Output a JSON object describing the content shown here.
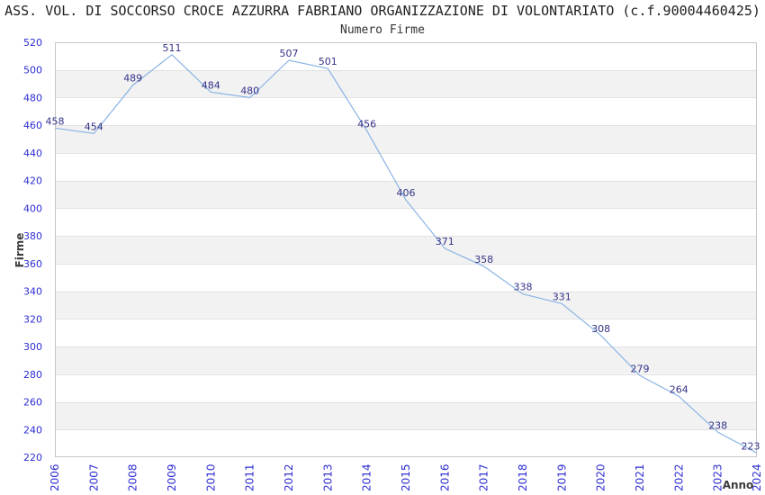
{
  "chart_data": {
    "type": "line",
    "title": "ASS. VOL. DI SOCCORSO CROCE AZZURRA FABRIANO ORGANIZZAZIONE DI VOLONTARIATO (c.f.90004460425)",
    "subtitle": "Numero Firme",
    "xlabel": "Anno",
    "ylabel": "Firme",
    "categories": [
      "2006",
      "2007",
      "2008",
      "2009",
      "2010",
      "2011",
      "2012",
      "2013",
      "2014",
      "2015",
      "2016",
      "2017",
      "2018",
      "2019",
      "2020",
      "2021",
      "2022",
      "2023",
      "2024"
    ],
    "values": [
      458,
      454,
      489,
      511,
      484,
      480,
      507,
      501,
      456,
      406,
      371,
      358,
      338,
      331,
      308,
      279,
      264,
      238,
      223
    ],
    "series_name": "Numero Firme",
    "ylim": [
      220,
      520
    ],
    "ytick_step": 20,
    "y_ticks": [
      220,
      240,
      260,
      280,
      300,
      320,
      340,
      360,
      380,
      400,
      420,
      440,
      460,
      480,
      500,
      520
    ],
    "grid": true,
    "alternating_bands": true,
    "legend_position": "none",
    "data_labels_visible": true,
    "colors": {
      "line": "#8ab4e4",
      "data_label": "#333388",
      "axis_tick_label": "#2d2dd2",
      "axis_title": "#3c3c3c",
      "band": "#f2f2f2",
      "band_alt": "#ffffff",
      "grid_line": "#e2e2e2",
      "plot_border": "#c6c6c6",
      "title": "#1f1f1f",
      "background": "#ffffff"
    }
  }
}
